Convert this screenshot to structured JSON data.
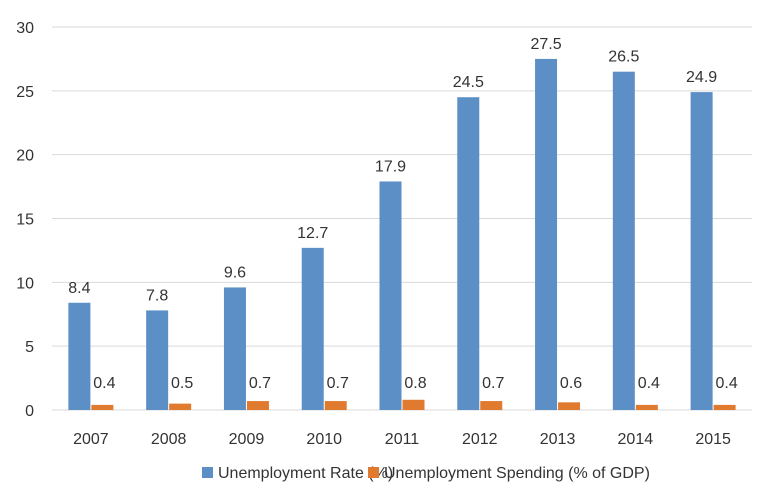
{
  "chart_data": {
    "type": "bar",
    "title": "",
    "xlabel": "",
    "ylabel": "",
    "categories": [
      "2007",
      "2008",
      "2009",
      "2010",
      "2011",
      "2012",
      "2013",
      "2014",
      "2015"
    ],
    "series": [
      {
        "name": "Unemployment Rate (%)",
        "color": "#5b8fc6",
        "values": [
          8.4,
          7.8,
          9.6,
          12.7,
          17.9,
          24.5,
          27.5,
          26.5,
          24.9
        ],
        "labels": [
          "8.4",
          "7.8",
          "9.6",
          "12.7",
          "17.9",
          "24.5",
          "27.5",
          "26.5",
          "24.9"
        ]
      },
      {
        "name": "Unemployment Spending (% of GDP)",
        "color": "#e07a2e",
        "values": [
          0.4,
          0.5,
          0.7,
          0.7,
          0.8,
          0.7,
          0.6,
          0.4,
          0.4
        ],
        "labels": [
          "0.4",
          "0.5",
          "0.7",
          "0.7",
          "0.8",
          "0.7",
          "0.6",
          "0.4",
          "0.4"
        ]
      }
    ],
    "ylim": [
      0,
      30
    ],
    "yticks": [
      "0",
      "5",
      "10",
      "15",
      "20",
      "25",
      "30"
    ],
    "grid": true,
    "legend_position": "bottom"
  }
}
